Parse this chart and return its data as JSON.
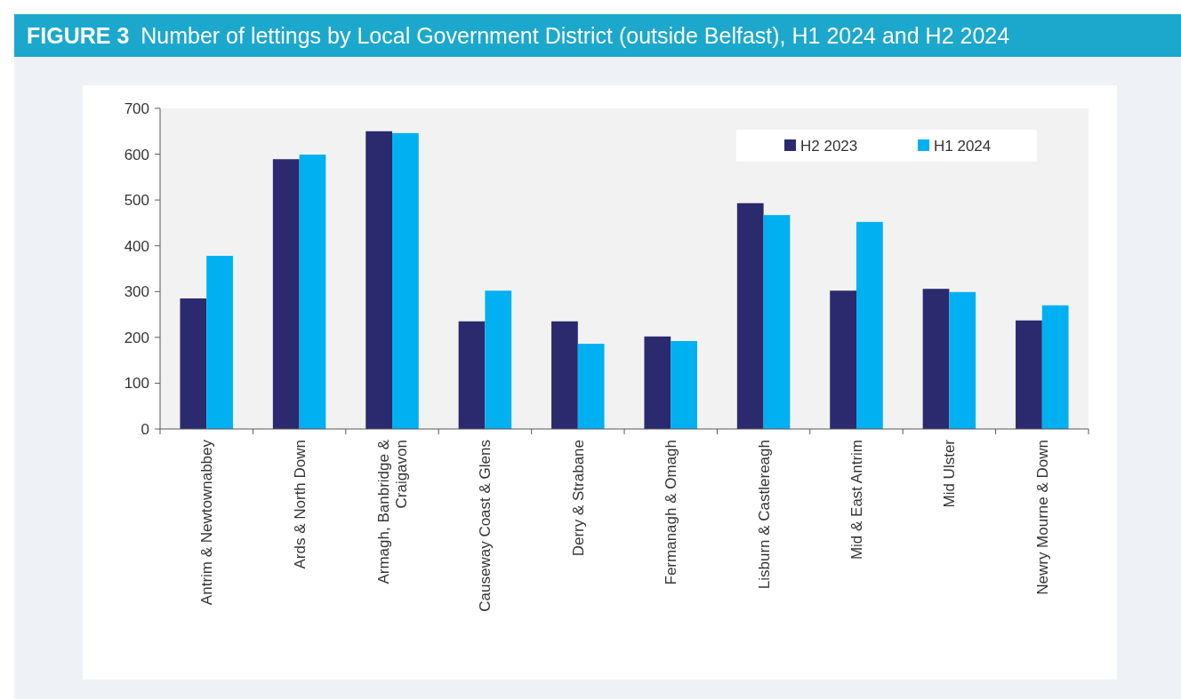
{
  "chart_data": {
    "type": "bar",
    "title": "Number of lettings by Local Government District (outside Belfast), H1 2024 and H2 2024",
    "annotations": [
      "FIGURE 3"
    ],
    "categories": [
      "Antrim & Newtownabbey",
      "Ards & North Down",
      "Armagh, Banbridge & Craigavon",
      "Causeway Coast & Glens",
      "Derry & Strabane",
      "Fermanagh & Omagh",
      "Lisburn & Castlereagh",
      "Mid & East Antrim",
      "Mid Ulster",
      "Newry Mourne & Down"
    ],
    "series": [
      {
        "name": "H2 2023",
        "color": "#2b2a6e",
        "values": [
          285,
          589,
          650,
          235,
          235,
          202,
          493,
          302,
          306,
          237
        ]
      },
      {
        "name": "H1 2024",
        "color": "#00b0f0",
        "values": [
          378,
          599,
          646,
          302,
          186,
          192,
          467,
          452,
          299,
          270
        ]
      }
    ],
    "ylim": [
      0,
      700
    ],
    "yticks": [
      0,
      100,
      200,
      300,
      400,
      500,
      600,
      700
    ],
    "grid": false,
    "legend": "top right"
  }
}
